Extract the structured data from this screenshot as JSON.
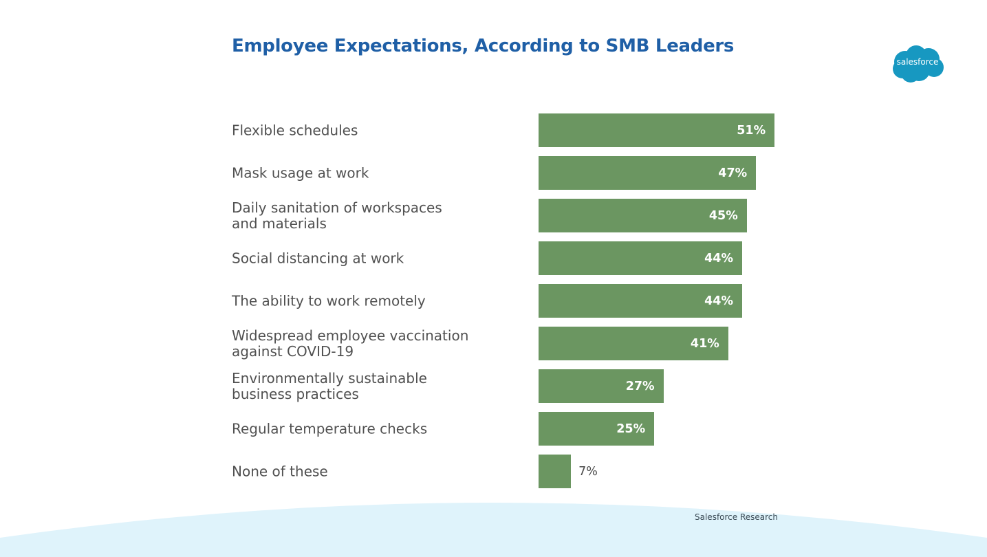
{
  "slide": {
    "title": "Employee Expectations, According to SMB Leaders",
    "logo_text": "salesforce",
    "source": "Salesforce Research"
  },
  "chart_data": {
    "type": "bar",
    "orientation": "horizontal",
    "title": "Employee Expectations, According to SMB Leaders",
    "xlabel": "",
    "ylabel": "",
    "categories": [
      "Flexible schedules",
      "Mask usage at work",
      "Daily sanitation of workspaces and materials",
      "Social distancing at work",
      "The ability to work remotely",
      "Widespread employee vaccination against COVID-19",
      "Environmentally sustainable business practices",
      "Regular temperature checks",
      "None of these"
    ],
    "category_lines": [
      [
        "Flexible schedules"
      ],
      [
        "Mask usage at work"
      ],
      [
        "Daily sanitation of workspaces",
        "and materials"
      ],
      [
        "Social distancing at work"
      ],
      [
        "The ability to work remotely"
      ],
      [
        "Widespread employee vaccination",
        "against COVID-19"
      ],
      [
        "Environmentally sustainable",
        "business practices"
      ],
      [
        "Regular temperature checks"
      ],
      [
        "None of these"
      ]
    ],
    "values": [
      51,
      47,
      45,
      44,
      44,
      41,
      27,
      25,
      7
    ],
    "value_labels": [
      "51%",
      "47%",
      "45%",
      "44%",
      "44%",
      "41%",
      "27%",
      "25%",
      "7%"
    ],
    "unit": "%",
    "xlim": [
      0,
      100
    ],
    "grid": false,
    "legend": "none",
    "bar_color": "#6b9661"
  },
  "colors": {
    "title": "#1f5fa6",
    "bar": "#6b9661",
    "logo": "#1798c1",
    "wave": "#dff3fb"
  }
}
